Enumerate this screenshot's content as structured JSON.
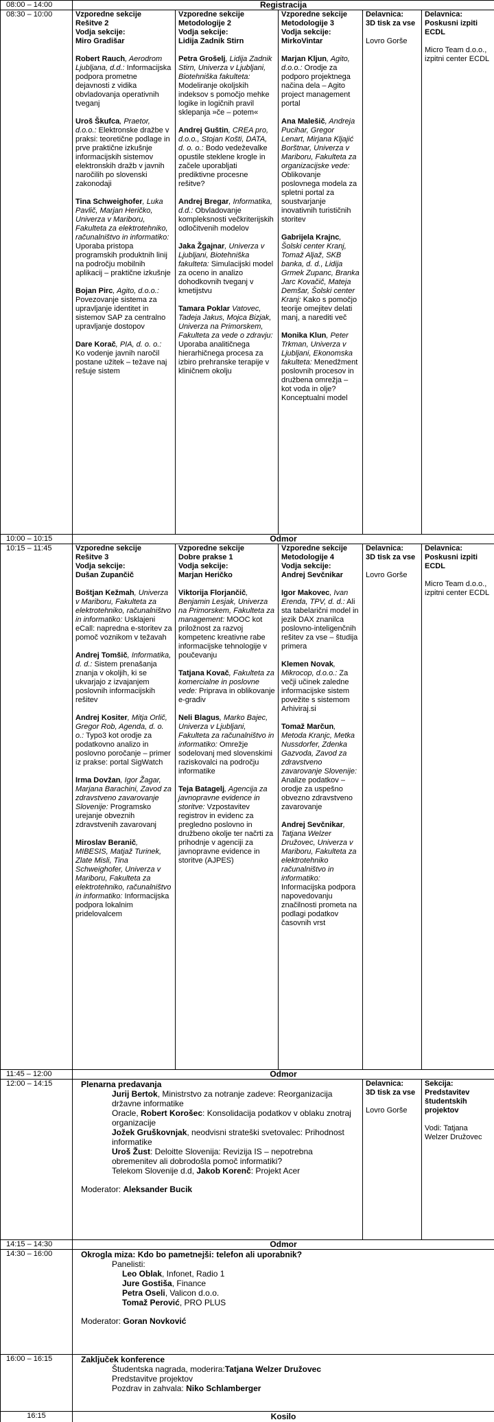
{
  "rows": [
    {
      "time": "08:00 – 14:00",
      "label": "Registracija"
    },
    {
      "time": "08:30 – 10:00",
      "cells": [
        {
          "heading": [
            "Vzporedne sekcije",
            "Rešitve 2",
            "Vodja sekcije:",
            "Miro Gradišar"
          ],
          "talks": [
            {
              "speaker": "Robert Rauch",
              "affiliation": ", Aerodrom Ljubljana, d.d.:",
              "title": " Informacijska podpora prometne dejavnosti z vidika obvladovanja operativnih tveganj"
            },
            {
              "speaker": "Uroš Škufca",
              "affiliation": ", Praetor, d.o.o.:",
              "title": " Elektronske dražbe v praksi: teoretične podlage in prve praktične izkušnje informacijskih sistemov elektronskih dražb v javnih naročilih po slovenski zakonodaji"
            },
            {
              "speaker": "Tina Schweighofer",
              "affiliation": ", Luka Pavlič, Marjan Heričko, Univerza v Mariboru, Fakulteta za elektrotehniko, računalništvo in informatiko:",
              "title": " Uporaba pristopa programskih produktnih linij na področju mobilnih aplikacij – praktične izkušnje"
            },
            {
              "speaker": "Bojan Pirc",
              "affiliation": ", Agito, d.o.o.:",
              "title": " Povezovanje sistema za upravljanje identitet in sistemov SAP za centralno upravljanje dostopov"
            },
            {
              "speaker": "Dare Korač",
              "affiliation": ", PIA, d. o. o.:",
              "title": " Ko vodenje javnih naročil postane užitek – težave naj rešuje sistem"
            }
          ]
        },
        {
          "heading": [
            "Vzporedne sekcije",
            "Metodologije 2",
            "Vodja sekcije:",
            "Lidija Zadnik Stirn"
          ],
          "talks": [
            {
              "speaker": "Petra Grošelj",
              "affiliation": ", Lidija Zadnik Stirn, Univerza v Ljubljani, Biotehniška fakulteta:",
              "title": " Modeliranje okoljskih indeksov s pomočjo mehke logike in logičnih pravil sklepanja »če – potem«"
            },
            {
              "speaker": "Andrej Guštin",
              "affiliation": ", CREA pro, d.o.o., Stojan Košti, DATA, d. o. o.:",
              "title": " Bodo vedeževalke opustile steklene krogle in začele uporabljati prediktivne procesne rešitve?"
            },
            {
              "speaker": "Andrej Bregar",
              "affiliation": ", Informatika, d.d.:",
              "title": " Obvladovanje kompleksnosti večkriterijskih odločitvenih modelov"
            },
            {
              "speaker": "Jaka Žgajnar",
              "affiliation": ", Univerza v Ljubljani, Biotehniška fakulteta:",
              "title": " Simulacijski model za oceno in analizo dohodkovnih tveganj v kmetijstvu"
            },
            {
              "speaker": "Tamara Poklar",
              "affiliation": " Vatovec, Tadeja Jakus, Mojca Bizjak, Univerza na Primorskem, Fakulteta za vede o zdravju:",
              "title": " Uporaba analitičnega hierarhičnega procesa za izbiro prehranske terapije v kliničnem okolju"
            }
          ]
        },
        {
          "heading": [
            "Vzporedne sekcije",
            "Metodologije 3",
            "Vodja sekcije:",
            "MirkoVintar"
          ],
          "talks": [
            {
              "speaker": "Marjan Kljun",
              "affiliation": ", Agito, d.o.o.:",
              "title": " Orodje za podporo projektnega načina dela – Agito project management portal"
            },
            {
              "speaker": "Ana Malešič",
              "affiliation": ", Andreja Pucihar, Gregor Lenart, Mirjana Kljajić Borštnar, Univerza v Mariboru, Fakulteta za organizacijske vede:",
              "title": " Oblikovanje poslovnega modela za spletni portal  za soustvarjanje inovativnih turističnih storitev"
            },
            {
              "speaker": "Gabrijela Krajnc",
              "affiliation": ", Šolski center Kranj, Tomaž Aljaž,  SKB banka, d. d., Lidija Grmek Zupanc, Branka Jarc Kovačič, Mateja Demšar, Šolski center Kranj:",
              "title": " Kako s pomočjo teorije omejitev delati manj, a narediti več"
            },
            {
              "speaker": "Monika Klun",
              "affiliation": ", Peter Trkman, Univerza v Ljubljani, Ekonomska fakulteta:",
              "title": " Menedžment poslovnih procesov in družbena omrežja – kot voda in olje? Konceptualni model"
            }
          ]
        },
        {
          "heading": [
            "Delavnica:",
            "3D tisk za vse"
          ],
          "body": [
            "Lovro Gorše"
          ]
        },
        {
          "heading": [
            "Delavnica:",
            "Poskusni izpiti ECDL"
          ],
          "body": [
            "Micro Team d.o.o., izpitni center ECDL"
          ]
        }
      ]
    },
    {
      "time": "10:00 – 10:15",
      "label": "Odmor"
    },
    {
      "time": "10:15 – 11:45",
      "cells": [
        {
          "heading": [
            "Vzporedne sekcije",
            "Rešitve 3",
            "Vodja sekcije:",
            "Dušan Zupančič"
          ],
          "talks": [
            {
              "speaker": "Boštjan Kežmah",
              "affiliation": ", Univerza v Mariboru, Fakulteta za elektrotehniko, računalništvo in informatiko:",
              "title": " Usklajeni eCall: napredna e-storitev za pomoč voznikom v težavah"
            },
            {
              "speaker": "Andrej Tomšič",
              "affiliation": ", Informatika, d. d.:",
              "title": " Sistem prenašanja znanja v okoljih, ki se ukvarjajo z izvajanjem poslovnih informacijskih rešitev"
            },
            {
              "speaker": "Andrej Kositer",
              "affiliation": ", Mitja Orlič, Gregor Rob, Agenda, d. o. o.:",
              "title": " Typo3 kot orodje za podatkovno analizo in poslovno poročanje – primer iz prakse: portal SigWatch"
            },
            {
              "speaker": "Irma Dovžan",
              "affiliation": ", Igor Žagar, Marjana Barachini, Zavod za zdravstveno zavarovanje Slovenije:",
              "title": " Programsko urejanje obveznih zdravstvenih zavarovanj"
            },
            {
              "speaker": "Miroslav Beranič",
              "affiliation": ", MIBESIS, Matjaž Turinek, Zlate Misli, Tina Schweighofer, Univerza v Mariboru, Fakulteta za elektrotehniko, računalništvo in informatiko:",
              "title": " Informacijska podpora lokalnim pridelovalcem"
            }
          ]
        },
        {
          "heading": [
            "Vzporedne sekcije",
            "Dobre prakse 1",
            "Vodja sekcije:",
            "Marjan Heričko"
          ],
          "talks": [
            {
              "speaker": "Viktorija Florjančič",
              "affiliation": ", Benjamin Lesjak, Univerza na Primorskem, Fakulteta za management:",
              "title": " MOOC kot priložnost za razvoj kompetenc kreativne rabe informacijske tehnologije v poučevanju"
            },
            {
              "speaker": "Tatjana Kovač",
              "affiliation": ", Fakulteta za komercialne in poslovne vede:",
              "title": " Priprava in oblikovanje e-gradiv"
            },
            {
              "speaker": "Neli Blagus",
              "affiliation": ", Marko Bajec, Univerza v Ljubljani, Fakulteta za računalništvo in informatiko:",
              "title": " Omrežje sodelovanj med slovenskimi raziskovalci na področju informatike"
            },
            {
              "speaker": "Teja Batagelj",
              "affiliation": ", Agencija za javnopravne evidence in storitve:",
              "title": " Vzpostavitev registrov in evidenc za pregledno poslovno in družbeno okolje ter načrti za prihodnje v agenciji za javnopravne evidence in storitve (AJPES)"
            }
          ]
        },
        {
          "heading": [
            "Vzporedne sekcije",
            "Metodologije 4",
            "Vodja sekcije:",
            "Andrej Sevčnikar"
          ],
          "talks": [
            {
              "speaker": "Igor Makovec",
              "affiliation": ", Ivan Erenda, TPV, d. d.:",
              "title": " Ali sta tabelarični model in jezik DAX znanilca poslovno-inteligenčnih rešitev za vse – študija primera"
            },
            {
              "speaker": "Klemen Novak",
              "affiliation": ", Mikrocop, d.o.o.:",
              "title": " Za večji učinek zaledne informacijske sistem povežite s sistemom Arhiviraj.si"
            },
            {
              "speaker": "Tomaž Marčun",
              "affiliation": ", Metoda Kranjc, Metka Nussdorfer, Zdenka Gazvoda, Zavod za zdravstveno zavarovanje Slovenije:",
              "title": " Analize podatkov – orodje za uspešno obvezno zdravstveno zavarovanje"
            },
            {
              "speaker": "Andrej Sevčnikar",
              "affiliation": ", Tatjana Welzer Družovec, Univerza v Mariboru, Fakulteta za elektrotehniko računalništvo in informatiko:",
              "title": " Informacijska podpora napovedovanju značilnosti prometa na podlagi podatkov časovnih vrst"
            }
          ]
        },
        {
          "heading": [
            "Delavnica:",
            "3D tisk za vse"
          ],
          "body": [
            "Lovro Gorše"
          ]
        },
        {
          "heading": [
            "Delavnica:",
            "Poskusni izpiti ECDL"
          ],
          "body": [
            "Micro Team d.o.o., izpitni center ECDL"
          ]
        }
      ]
    },
    {
      "time": "11:45 – 12:00",
      "label": "Odmor"
    },
    {
      "time": "12:00 – 14:15",
      "cells": [
        {
          "heading": "Plenarna predavanja",
          "items": [
            [
              {
                "text": "Jurij Bertok",
                "bold": true
              },
              {
                "text": ", Ministrstvo za notranje zadeve: Reorganizacija državne informatike"
              }
            ],
            [
              {
                "text": "Oracle, "
              },
              {
                "text": "Robert Korošec",
                "bold": true
              },
              {
                "text": ": Konsolidacija podatkov v oblaku znotraj organizacije"
              }
            ],
            [
              {
                "text": "Jožek Gruškovnjak",
                "bold": true
              },
              {
                "text": ", neodvisni strateški svetovalec: Prihodnost informatike"
              }
            ],
            [
              {
                "text": "Uroš Žust",
                "bold": true
              },
              {
                "text": ": Deloitte Slovenija: Revizija IS – nepotrebna obremenitev ali dobrodošla pomoč informatiki?"
              }
            ],
            [
              {
                "text": "Telekom Slovenije d.d, "
              },
              {
                "text": "Jakob Korenč",
                "bold": true
              },
              {
                "text": ": Projekt Acer"
              }
            ]
          ],
          "moderator": [
            {
              "text": "Moderator: "
            },
            {
              "text": "Aleksander Bucik",
              "bold": true
            }
          ]
        },
        {
          "heading": [
            "Delavnica:",
            "3D tisk za vse"
          ],
          "body": [
            "Lovro Gorše"
          ]
        },
        {
          "heading": [
            "Sekcija:",
            "Predstavitev študentskih projektov"
          ],
          "body": [
            "Vodi: Tatjana Welzer Družovec"
          ]
        }
      ]
    },
    {
      "time": "14:15 – 14:30",
      "label": "Odmor"
    },
    {
      "time": "14:30 – 16:00",
      "cells": [
        {
          "heading": "Okrogla miza: Kdo bo pametnejši: telefon ali uporabnik?",
          "subheading": "Panelisti:",
          "items": [
            [
              {
                "text": "Leo Oblak",
                "bold": true
              },
              {
                "text": ", Infonet, Radio 1"
              }
            ],
            [
              {
                "text": "Jure Gostiša",
                "bold": true
              },
              {
                "text": ", Finance"
              }
            ],
            [
              {
                "text": "Petra Oseli",
                "bold": true
              },
              {
                "text": ", Valicon d.o.o."
              }
            ],
            [
              {
                "text": "Tomaž Perović",
                "bold": true
              },
              {
                "text": ", PRO PLUS"
              }
            ]
          ],
          "moderator": [
            {
              "text": "Moderator: "
            },
            {
              "text": "Goran Novković",
              "bold": true
            }
          ]
        }
      ]
    },
    {
      "time": "16:00 – 16:15",
      "cells": [
        {
          "heading": "Zaključek konference",
          "items": [
            [
              {
                "text": "Študentska nagrada, moderira:"
              },
              {
                "text": "Tatjana Welzer Družovec",
                "bold": true
              }
            ],
            [
              {
                "text": "Predstavitve projektov"
              }
            ],
            [
              {
                "text": "Pozdrav in zahvala: "
              },
              {
                "text": "Niko Schlamberger",
                "bold": true
              }
            ]
          ]
        }
      ]
    },
    {
      "time": "16:15",
      "label": "Kosilo"
    }
  ]
}
